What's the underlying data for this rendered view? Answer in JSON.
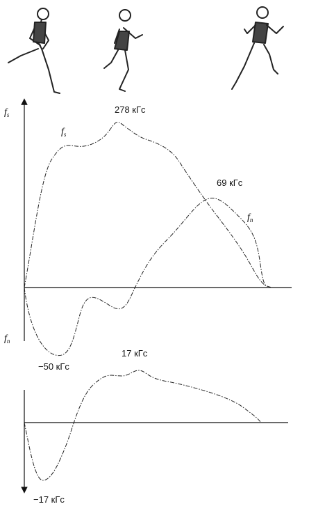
{
  "axis_labels": {
    "top": {
      "main": "f",
      "sub": "s"
    },
    "bottom": {
      "main": "f",
      "sub": "n"
    }
  },
  "curve_labels": {
    "fs": {
      "main": "f",
      "sub": "s"
    },
    "fn": {
      "main": "f",
      "sub": "n"
    }
  },
  "annotations": {
    "fs_peak": "278 кГс",
    "fn_peak": "69 кГс",
    "fn_min": "−50 кГс",
    "lateral_peak": "17 кГс",
    "lateral_min": "−17 кГс"
  }
}
